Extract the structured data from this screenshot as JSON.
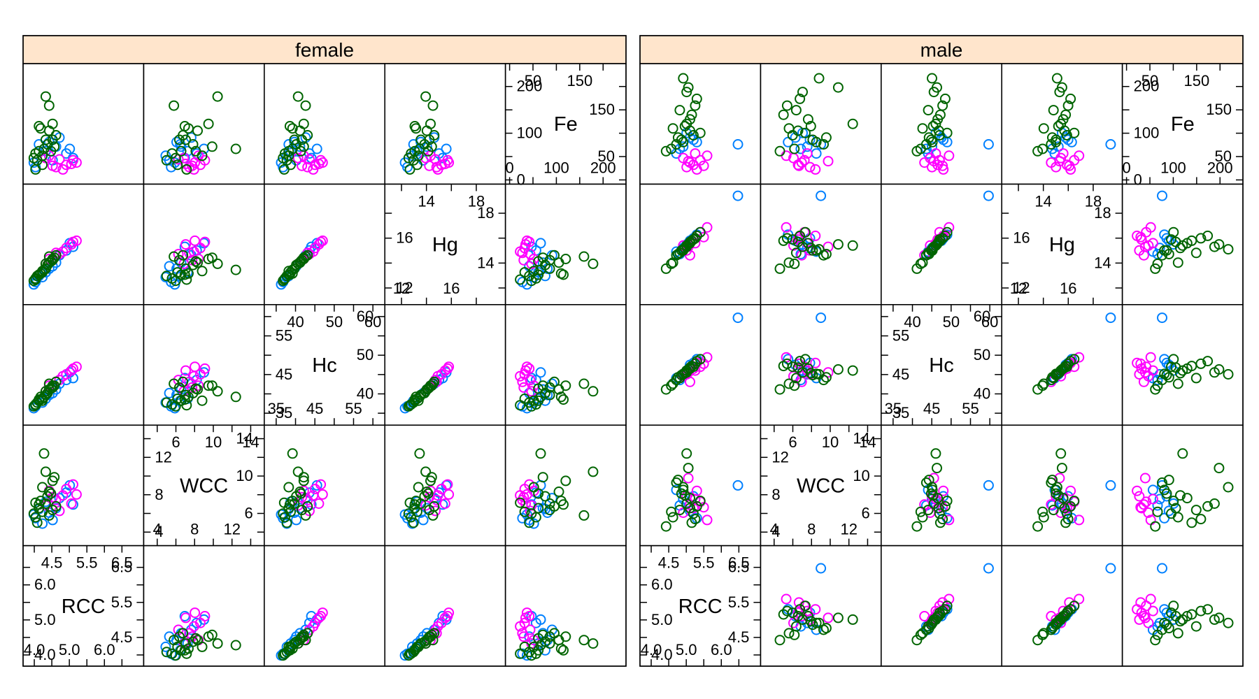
{
  "colors": {
    "strip_bg": "#FFE5CC",
    "frame": "#000000",
    "point_series": [
      "#0080FF",
      "#FF00FF",
      "#006400"
    ]
  },
  "chart_data": {
    "type": "scatter",
    "subtype": "scatterplot-matrix",
    "panels": [
      {
        "strip": "female",
        "vars": [
          "Fe",
          "Hg",
          "Hc",
          "WCC",
          "RCC"
        ],
        "series": [
          {
            "rows": [
              {
                "RCC": 4.3,
                "WCC": 7.2,
                "Hc": 38.5,
                "Hg": 13.2,
                "Fe": 60
              },
              {
                "RCC": 4.6,
                "WCC": 6.5,
                "Hc": 41.0,
                "Hg": 14.0,
                "Fe": 70
              },
              {
                "RCC": 4.0,
                "WCC": 5.4,
                "Hc": 36.5,
                "Hg": 12.4,
                "Fe": 25
              },
              {
                "RCC": 5.1,
                "WCC": 6.9,
                "Hc": 44.0,
                "Hg": 15.3,
                "Fe": 45
              },
              {
                "RCC": 4.9,
                "WCC": 8.2,
                "Hc": 43.5,
                "Hg": 15.0,
                "Fe": 55
              },
              {
                "RCC": 4.4,
                "WCC": 6.0,
                "Hc": 39.5,
                "Hg": 13.5,
                "Fe": 80
              },
              {
                "RCC": 3.95,
                "WCC": 5.8,
                "Hc": 36.0,
                "Hg": 12.2,
                "Fe": 35
              },
              {
                "RCC": 4.7,
                "WCC": 7.6,
                "Hc": 42.5,
                "Hg": 14.6,
                "Fe": 90
              },
              {
                "RCC": 4.2,
                "WCC": 4.8,
                "Hc": 37.5,
                "Hg": 12.8,
                "Fe": 50
              },
              {
                "RCC": 5.0,
                "WCC": 9.0,
                "Hc": 45.5,
                "Hg": 15.6,
                "Fe": 65
              },
              {
                "RCC": 4.5,
                "WCC": 5.2,
                "Hc": 40.0,
                "Hg": 13.7,
                "Fe": 40
              },
              {
                "RCC": 4.1,
                "WCC": 6.4,
                "Hc": 38.0,
                "Hg": 12.9,
                "Fe": 75
              }
            ]
          },
          {
            "rows": [
              {
                "RCC": 5.2,
                "WCC": 8.0,
                "Hc": 47.0,
                "Hg": 15.8,
                "Fe": 35
              },
              {
                "RCC": 5.1,
                "WCC": 9.1,
                "Hc": 46.5,
                "Hg": 15.7,
                "Fe": 40
              },
              {
                "RCC": 4.6,
                "WCC": 7.4,
                "Hc": 43.0,
                "Hg": 14.8,
                "Fe": 25
              },
              {
                "RCC": 4.9,
                "WCC": 8.6,
                "Hc": 45.0,
                "Hg": 15.2,
                "Fe": 30
              },
              {
                "RCC": 4.3,
                "WCC": 6.8,
                "Hc": 40.5,
                "Hg": 13.9,
                "Fe": 45
              },
              {
                "RCC": 4.8,
                "WCC": 7.9,
                "Hc": 44.5,
                "Hg": 14.9,
                "Fe": 20
              },
              {
                "RCC": 4.4,
                "WCC": 8.4,
                "Hc": 42.0,
                "Hg": 14.3,
                "Fe": 50
              },
              {
                "RCC": 5.05,
                "WCC": 7.0,
                "Hc": 46.0,
                "Hg": 15.5,
                "Fe": 32
              },
              {
                "RCC": 4.7,
                "WCC": 6.2,
                "Hc": 43.5,
                "Hg": 14.7,
                "Fe": 42
              },
              {
                "RCC": 4.5,
                "WCC": 7.7,
                "Hc": 41.5,
                "Hg": 14.2,
                "Fe": 28
              }
            ]
          },
          {
            "rows": [
              {
                "RCC": 4.1,
                "WCC": 6.5,
                "Hc": 38.0,
                "Hg": 13.0,
                "Fe": 60
              },
              {
                "RCC": 4.3,
                "WCC": 7.0,
                "Hc": 39.5,
                "Hg": 13.5,
                "Fe": 85
              },
              {
                "RCC": 3.95,
                "WCC": 5.9,
                "Hc": 36.5,
                "Hg": 12.5,
                "Fe": 45
              },
              {
                "RCC": 4.4,
                "WCC": 8.3,
                "Hc": 41.0,
                "Hg": 14.0,
                "Fe": 105
              },
              {
                "RCC": 4.2,
                "WCC": 6.1,
                "Hc": 38.5,
                "Hg": 13.2,
                "Fe": 30
              },
              {
                "RCC": 4.5,
                "WCC": 9.5,
                "Hc": 42.0,
                "Hg": 14.3,
                "Fe": 120
              },
              {
                "RCC": 4.0,
                "WCC": 5.5,
                "Hc": 37.0,
                "Hg": 12.7,
                "Fe": 55
              },
              {
                "RCC": 4.35,
                "WCC": 7.8,
                "Hc": 40.0,
                "Hg": 13.8,
                "Fe": 75
              },
              {
                "RCC": 4.25,
                "WCC": 12.5,
                "Hc": 39.0,
                "Hg": 13.4,
                "Fe": 65
              },
              {
                "RCC": 4.6,
                "WCC": 6.7,
                "Hc": 43.0,
                "Hg": 14.6,
                "Fe": 95
              },
              {
                "RCC": 4.05,
                "WCC": 4.9,
                "Hc": 37.5,
                "Hg": 12.9,
                "Fe": 40
              },
              {
                "RCC": 4.3,
                "WCC": 10.5,
                "Hc": 40.5,
                "Hg": 13.9,
                "Fe": 180
              },
              {
                "RCC": 4.15,
                "WCC": 7.3,
                "Hc": 39.0,
                "Hg": 13.1,
                "Fe": 110
              },
              {
                "RCC": 4.5,
                "WCC": 6.3,
                "Hc": 41.5,
                "Hg": 14.2,
                "Fe": 85
              },
              {
                "RCC": 4.2,
                "WCC": 8.8,
                "Hc": 38.0,
                "Hg": 13.3,
                "Fe": 50
              },
              {
                "RCC": 4.4,
                "WCC": 5.7,
                "Hc": 42.5,
                "Hg": 14.5,
                "Fe": 160
              },
              {
                "RCC": 4.0,
                "WCC": 7.1,
                "Hc": 36.8,
                "Hg": 12.6,
                "Fe": 20
              },
              {
                "RCC": 4.55,
                "WCC": 9.9,
                "Hc": 42.0,
                "Hg": 14.4,
                "Fe": 70
              },
              {
                "RCC": 4.1,
                "WCC": 6.9,
                "Hc": 38.3,
                "Hg": 13.0,
                "Fe": 115
              },
              {
                "RCC": 4.45,
                "WCC": 8.1,
                "Hc": 41.2,
                "Hg": 14.1,
                "Fe": 60
              }
            ]
          }
        ]
      },
      {
        "strip": "male",
        "vars": [
          "Fe",
          "Hg",
          "Hc",
          "WCC",
          "RCC"
        ],
        "series": [
          {
            "rows": [
              {
                "RCC": 4.9,
                "WCC": 7.5,
                "Hc": 45.0,
                "Hg": 15.2,
                "Fe": 70
              },
              {
                "RCC": 5.1,
                "WCC": 6.2,
                "Hc": 47.5,
                "Hg": 15.8,
                "Fe": 90
              },
              {
                "RCC": 4.7,
                "WCC": 8.5,
                "Hc": 44.0,
                "Hg": 14.9,
                "Fe": 55
              },
              {
                "RCC": 5.3,
                "WCC": 5.4,
                "Hc": 49.0,
                "Hg": 16.3,
                "Fe": 80
              },
              {
                "RCC": 5.0,
                "WCC": 7.0,
                "Hc": 46.0,
                "Hg": 15.5,
                "Fe": 100
              },
              {
                "RCC": 4.8,
                "WCC": 6.8,
                "Hc": 43.5,
                "Hg": 14.7,
                "Fe": 65
              },
              {
                "RCC": 6.5,
                "WCC": 9.0,
                "Hc": 60.0,
                "Hg": 19.5,
                "Fe": 75
              },
              {
                "RCC": 5.2,
                "WCC": 7.8,
                "Hc": 48.0,
                "Hg": 16.0,
                "Fe": 85
              }
            ]
          },
          {
            "rows": [
              {
                "RCC": 5.4,
                "WCC": 7.2,
                "Hc": 47.0,
                "Hg": 16.5,
                "Fe": 40
              },
              {
                "RCC": 5.2,
                "WCC": 6.5,
                "Hc": 46.5,
                "Hg": 15.9,
                "Fe": 30
              },
              {
                "RCC": 5.0,
                "WCC": 7.8,
                "Hc": 45.0,
                "Hg": 15.0,
                "Fe": 25
              },
              {
                "RCC": 5.6,
                "WCC": 5.2,
                "Hc": 49.5,
                "Hg": 16.9,
                "Fe": 50
              },
              {
                "RCC": 5.1,
                "WCC": 6.9,
                "Hc": 43.0,
                "Hg": 14.6,
                "Fe": 35
              },
              {
                "RCC": 5.3,
                "WCC": 8.4,
                "Hc": 48.0,
                "Hg": 16.2,
                "Fe": 20
              },
              {
                "RCC": 4.9,
                "WCC": 6.0,
                "Hc": 44.5,
                "Hg": 15.4,
                "Fe": 45
              },
              {
                "RCC": 5.25,
                "WCC": 7.5,
                "Hc": 46.0,
                "Hg": 15.6,
                "Fe": 55
              },
              {
                "RCC": 5.05,
                "WCC": 9.8,
                "Hc": 45.5,
                "Hg": 15.3,
                "Fe": 38
              },
              {
                "RCC": 5.5,
                "WCC": 6.6,
                "Hc": 47.8,
                "Hg": 16.1,
                "Fe": 28
              }
            ]
          },
          {
            "rows": [
              {
                "RCC": 4.4,
                "WCC": 4.5,
                "Hc": 41.0,
                "Hg": 13.5,
                "Fe": 60
              },
              {
                "RCC": 4.6,
                "WCC": 5.5,
                "Hc": 42.5,
                "Hg": 14.0,
                "Fe": 110
              },
              {
                "RCC": 4.8,
                "WCC": 6.3,
                "Hc": 44.0,
                "Hg": 14.8,
                "Fe": 150
              },
              {
                "RCC": 5.0,
                "WCC": 7.0,
                "Hc": 45.5,
                "Hg": 15.3,
                "Fe": 190
              },
              {
                "RCC": 4.9,
                "WCC": 8.8,
                "Hc": 45.0,
                "Hg": 15.1,
                "Fe": 220
              },
              {
                "RCC": 5.1,
                "WCC": 7.6,
                "Hc": 46.5,
                "Hg": 15.6,
                "Fe": 130
              },
              {
                "RCC": 5.2,
                "WCC": 5.9,
                "Hc": 47.0,
                "Hg": 15.9,
                "Fe": 95
              },
              {
                "RCC": 4.7,
                "WCC": 9.3,
                "Hc": 43.5,
                "Hg": 14.6,
                "Fe": 75
              },
              {
                "RCC": 5.3,
                "WCC": 6.7,
                "Hc": 48.5,
                "Hg": 16.2,
                "Fe": 175
              },
              {
                "RCC": 5.0,
                "WCC": 12.5,
                "Hc": 46.0,
                "Hg": 15.4,
                "Fe": 120
              },
              {
                "RCC": 4.85,
                "WCC": 8.1,
                "Hc": 44.8,
                "Hg": 15.0,
                "Fe": 85
              },
              {
                "RCC": 5.15,
                "WCC": 4.9,
                "Hc": 47.2,
                "Hg": 15.8,
                "Fe": 140
              },
              {
                "RCC": 5.4,
                "WCC": 7.3,
                "Hc": 49.0,
                "Hg": 16.5,
                "Fe": 100
              },
              {
                "RCC": 4.55,
                "WCC": 6.1,
                "Hc": 42.0,
                "Hg": 13.9,
                "Fe": 65
              },
              {
                "RCC": 5.05,
                "WCC": 10.9,
                "Hc": 46.3,
                "Hg": 15.5,
                "Fe": 200
              },
              {
                "RCC": 4.95,
                "WCC": 7.9,
                "Hc": 45.3,
                "Hg": 15.2,
                "Fe": 115
              },
              {
                "RCC": 5.25,
                "WCC": 5.3,
                "Hc": 47.8,
                "Hg": 16.0,
                "Fe": 160
              },
              {
                "RCC": 4.75,
                "WCC": 9.6,
                "Hc": 44.2,
                "Hg": 14.7,
                "Fe": 90
              },
              {
                "RCC": 5.1,
                "WCC": 6.5,
                "Hc": 46.8,
                "Hg": 15.7,
                "Fe": 105
              },
              {
                "RCC": 4.9,
                "WCC": 8.5,
                "Hc": 45.1,
                "Hg": 15.0,
                "Fe": 80
              }
            ]
          }
        ]
      }
    ],
    "var_labels": {
      "Fe": "Fe",
      "Hg": "Hg",
      "Hc": "Hc",
      "WCC": "WCC",
      "RCC": "RCC"
    },
    "axes": {
      "Fe": {
        "range": [
          0,
          240
        ],
        "low_ticks": [
          0,
          50,
          100,
          150,
          200
        ],
        "low_labels": [
          "0",
          "50",
          "100",
          "150",
          "200"
        ],
        "high_ticks": [
          0,
          50,
          100,
          150,
          200
        ],
        "high_labels": [
          "0",
          "50",
          "100",
          "150",
          "200"
        ]
      },
      "Hg": {
        "range": [
          11,
          20
        ],
        "low_ticks": [
          12,
          14,
          16,
          18
        ],
        "low_labels": [
          "12",
          "14",
          "16",
          "18"
        ],
        "high_ticks": [
          12,
          14,
          16,
          18
        ],
        "high_labels": [
          "12",
          "14",
          "16",
          "18"
        ]
      },
      "Hc": {
        "range": [
          33,
          62
        ],
        "low_ticks": [
          35,
          40,
          45,
          50,
          55,
          60
        ],
        "low_labels": [
          "35",
          "40",
          "45",
          "50",
          "55",
          "60"
        ],
        "high_ticks": [
          35,
          40,
          45,
          50,
          55,
          60
        ],
        "high_labels": [
          "35",
          "40",
          "45",
          "50",
          "55",
          "60"
        ]
      },
      "WCC": {
        "range": [
          3,
          15
        ],
        "low_ticks": [
          4,
          6,
          8,
          10,
          12,
          14
        ],
        "low_labels": [
          "4",
          "6",
          "8",
          "10",
          "12",
          "14"
        ],
        "high_ticks": [
          4,
          6,
          8,
          10,
          12,
          14
        ],
        "high_labels": [
          "4",
          "6",
          "8",
          "10",
          "12",
          "14"
        ]
      },
      "RCC": {
        "range": [
          3.8,
          7.0
        ],
        "low_ticks": [
          4.0,
          4.5,
          5.0,
          5.5,
          6.0,
          6.5
        ],
        "low_labels": [
          "4.0",
          "4.5",
          "5.0",
          "5.5",
          "6.0",
          "6.5"
        ],
        "high_ticks": [
          4.0,
          4.5,
          5.0,
          5.5,
          6.0,
          6.5
        ],
        "high_labels": [
          "4.0",
          "4.5",
          "5.0",
          "5.5",
          "6.0",
          "6.5"
        ]
      }
    },
    "grid": false,
    "legend": "none"
  }
}
